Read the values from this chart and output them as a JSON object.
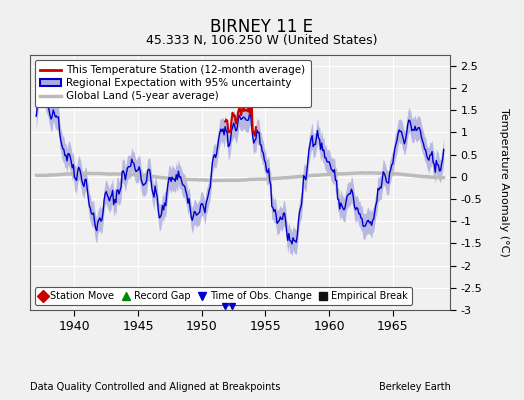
{
  "title": "BIRNEY 11 E",
  "subtitle": "45.333 N, 106.250 W (United States)",
  "xlabel_bottom": "Data Quality Controlled and Aligned at Breakpoints",
  "xlabel_right": "Berkeley Earth",
  "ylabel": "Temperature Anomaly (°C)",
  "xlim": [
    1936.5,
    1969.5
  ],
  "ylim": [
    -3.0,
    2.75
  ],
  "yticks": [
    -3,
    -2.5,
    -2,
    -1.5,
    -1,
    -0.5,
    0,
    0.5,
    1,
    1.5,
    2,
    2.5
  ],
  "xticks": [
    1940,
    1945,
    1950,
    1955,
    1960,
    1965
  ],
  "bg_color": "#f0f0f0",
  "plot_bg_color": "#f0f0f0",
  "regional_color": "#0000cc",
  "regional_uncertainty_color": "#aaaadd",
  "station_color": "#cc0000",
  "global_color": "#bbbbbb",
  "grid_color": "#ffffff",
  "legend_entries": [
    "This Temperature Station (12-month average)",
    "Regional Expectation with 95% uncertainty",
    "Global Land (5-year average)"
  ],
  "bottom_legend": [
    {
      "label": "Station Move",
      "color": "#cc0000",
      "marker": "D"
    },
    {
      "label": "Record Gap",
      "color": "#008800",
      "marker": "^"
    },
    {
      "label": "Time of Obs. Change",
      "color": "#0000cc",
      "marker": "v"
    },
    {
      "label": "Empirical Break",
      "color": "#111111",
      "marker": "s"
    }
  ],
  "seed": 7
}
